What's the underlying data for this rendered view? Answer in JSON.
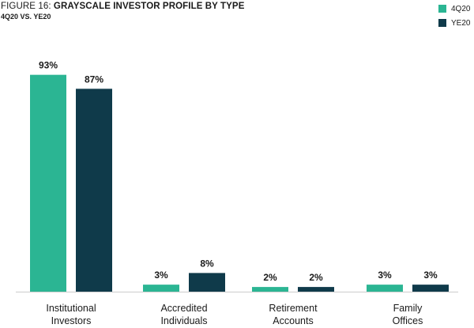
{
  "header": {
    "title_prefix": "FIGURE 16: ",
    "title_main": "GRAYSCALE INVESTOR PROFILE BY TYPE",
    "subtitle": "4Q20 VS. YE20"
  },
  "colors": {
    "series_4q20": "#2bb593",
    "series_ye20": "#0f3a4a",
    "baseline": "#cccccc"
  },
  "chart_data": {
    "type": "bar",
    "title": "FIGURE 16: GRAYSCALE INVESTOR PROFILE BY TYPE",
    "subtitle": "4Q20 VS. YE20",
    "categories": [
      [
        "Institutional",
        "Investors"
      ],
      [
        "Accredited",
        "Individuals"
      ],
      [
        "Retirement",
        "Accounts"
      ],
      [
        "Family",
        "Offices"
      ]
    ],
    "series": [
      {
        "name": "4Q20",
        "values": [
          93,
          3,
          2,
          3
        ],
        "labels": [
          "93%",
          "3%",
          "2%",
          "3%"
        ]
      },
      {
        "name": "YE20",
        "values": [
          87,
          8,
          2,
          3
        ],
        "labels": [
          "87%",
          "8%",
          "2%",
          "3%"
        ]
      }
    ],
    "ylim": [
      0,
      100
    ],
    "unit": "%",
    "legend": "top-right",
    "grid": false
  }
}
